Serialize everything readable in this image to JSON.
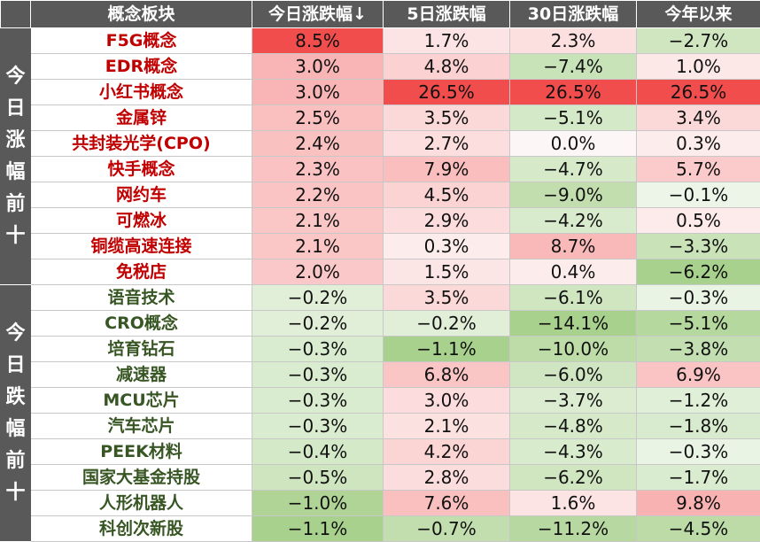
{
  "chart_data": {
    "type": "table",
    "headers": [
      "概念板块",
      "今日涨跌幅↓",
      "5日涨跌幅",
      "30日涨跌幅",
      "今年以来"
    ],
    "colors": {
      "up_text": "#c00000",
      "down_text": "#375623",
      "header_bg": "#595959",
      "pos_max": "#f24d4d",
      "neg_max": "#a9d18e"
    },
    "groups": [
      {
        "label": "今日涨幅前十",
        "rows": [
          {
            "name": "F5G概念",
            "values": [
              8.5,
              1.7,
              2.3,
              -2.7
            ],
            "display": [
              "8.5%",
              "1.7%",
              "2.3%",
              "−2.7%"
            ]
          },
          {
            "name": "EDR概念",
            "values": [
              3.0,
              4.8,
              -7.4,
              1.0
            ],
            "display": [
              "3.0%",
              "4.8%",
              "−7.4%",
              "1.0%"
            ]
          },
          {
            "name": "小红书概念",
            "values": [
              3.0,
              26.5,
              26.5,
              26.5
            ],
            "display": [
              "3.0%",
              "26.5%",
              "26.5%",
              "26.5%"
            ]
          },
          {
            "name": "金属锌",
            "values": [
              2.5,
              3.5,
              -5.1,
              3.4
            ],
            "display": [
              "2.5%",
              "3.5%",
              "−5.1%",
              "3.4%"
            ]
          },
          {
            "name": "共封装光学(CPO)",
            "values": [
              2.4,
              2.7,
              0.0,
              0.3
            ],
            "display": [
              "2.4%",
              "2.7%",
              "0.0%",
              "0.3%"
            ]
          },
          {
            "name": "快手概念",
            "values": [
              2.3,
              7.9,
              -4.7,
              5.7
            ],
            "display": [
              "2.3%",
              "7.9%",
              "−4.7%",
              "5.7%"
            ]
          },
          {
            "name": "网约车",
            "values": [
              2.2,
              4.5,
              -9.0,
              -0.1
            ],
            "display": [
              "2.2%",
              "4.5%",
              "−9.0%",
              "−0.1%"
            ]
          },
          {
            "name": "可燃冰",
            "values": [
              2.1,
              2.9,
              -4.2,
              0.5
            ],
            "display": [
              "2.1%",
              "2.9%",
              "−4.2%",
              "0.5%"
            ]
          },
          {
            "name": "铜缆高速连接",
            "values": [
              2.1,
              0.3,
              8.7,
              -3.3
            ],
            "display": [
              "2.1%",
              "0.3%",
              "8.7%",
              "−3.3%"
            ]
          },
          {
            "name": "免税店",
            "values": [
              2.0,
              1.5,
              0.4,
              -6.2
            ],
            "display": [
              "2.0%",
              "1.5%",
              "0.4%",
              "−6.2%"
            ]
          }
        ]
      },
      {
        "label": "今日跌幅前十",
        "rows": [
          {
            "name": "语音技术",
            "values": [
              -0.2,
              3.5,
              -6.1,
              -0.3
            ],
            "display": [
              "−0.2%",
              "3.5%",
              "−6.1%",
              "−0.3%"
            ]
          },
          {
            "name": "CRO概念",
            "values": [
              -0.2,
              -0.2,
              -14.1,
              -5.1
            ],
            "display": [
              "−0.2%",
              "−0.2%",
              "−14.1%",
              "−5.1%"
            ]
          },
          {
            "name": "培育钻石",
            "values": [
              -0.3,
              -1.1,
              -10.0,
              -3.8
            ],
            "display": [
              "−0.3%",
              "−1.1%",
              "−10.0%",
              "−3.8%"
            ]
          },
          {
            "name": "减速器",
            "values": [
              -0.3,
              6.8,
              -6.0,
              6.9
            ],
            "display": [
              "−0.3%",
              "6.8%",
              "−6.0%",
              "6.9%"
            ]
          },
          {
            "name": "MCU芯片",
            "values": [
              -0.3,
              3.0,
              -3.7,
              -1.2
            ],
            "display": [
              "−0.3%",
              "3.0%",
              "−3.7%",
              "−1.2%"
            ]
          },
          {
            "name": "汽车芯片",
            "values": [
              -0.3,
              2.1,
              -4.8,
              -1.8
            ],
            "display": [
              "−0.3%",
              "2.1%",
              "−4.8%",
              "−1.8%"
            ]
          },
          {
            "name": "PEEK材料",
            "values": [
              -0.4,
              4.2,
              -4.3,
              -0.3
            ],
            "display": [
              "−0.4%",
              "4.2%",
              "−4.3%",
              "−0.3%"
            ]
          },
          {
            "name": "国家大基金持股",
            "values": [
              -0.5,
              2.8,
              -6.2,
              -1.7
            ],
            "display": [
              "−0.5%",
              "2.8%",
              "−6.2%",
              "−1.7%"
            ]
          },
          {
            "name": "人形机器人",
            "values": [
              -1.0,
              7.6,
              1.6,
              9.8
            ],
            "display": [
              "−1.0%",
              "7.6%",
              "1.6%",
              "9.8%"
            ]
          },
          {
            "name": "科创次新股",
            "values": [
              -1.1,
              -0.7,
              -11.2,
              -4.5
            ],
            "display": [
              "−1.1%",
              "−0.7%",
              "−11.2%",
              "−4.5%"
            ]
          }
        ]
      }
    ]
  }
}
